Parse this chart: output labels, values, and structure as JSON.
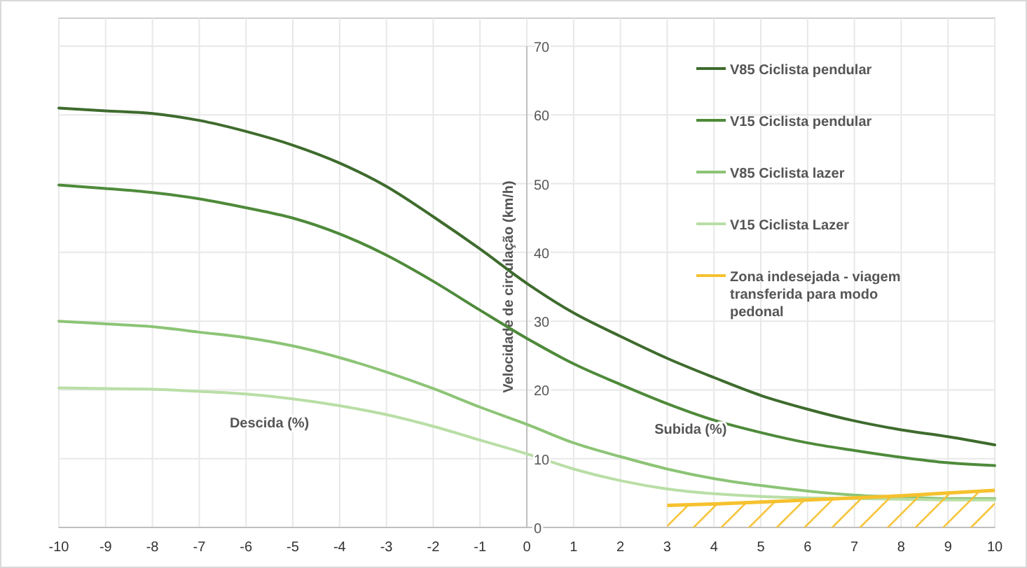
{
  "chart_data": {
    "type": "line",
    "ylabel": "Velocidade de circulação (km/h)",
    "annotations": [
      "Descida (%)",
      "Subida (%)"
    ],
    "x": [
      -10,
      -9,
      -8,
      -7,
      -6,
      -5,
      -4,
      -3,
      -2,
      -1,
      0,
      1,
      2,
      3,
      4,
      5,
      6,
      7,
      8,
      9,
      10
    ],
    "xlim": [
      -10,
      10
    ],
    "xticks": [
      -10,
      -9,
      -8,
      -7,
      -6,
      -5,
      -4,
      -3,
      -2,
      -1,
      0,
      1,
      2,
      3,
      4,
      5,
      6,
      7,
      8,
      9,
      10
    ],
    "ylim": [
      0,
      70
    ],
    "yticks": [
      0,
      10,
      20,
      30,
      40,
      50,
      60,
      70
    ],
    "grid": true,
    "legend": "top right",
    "marker": "none",
    "line_style": "solid",
    "series": [
      {
        "name": "V85 Ciclista pendular",
        "color": "#3e6b2d",
        "values": [
          61,
          60.6,
          60.2,
          59.2,
          57.6,
          55.6,
          53,
          49.6,
          45.2,
          40.5,
          35.5,
          31.2,
          27.8,
          24.6,
          21.8,
          19.2,
          17.2,
          15.5,
          14.2,
          13.2,
          12
        ]
      },
      {
        "name": "V15 Ciclista pendular",
        "color": "#4e8a3a",
        "values": [
          49.8,
          49.3,
          48.7,
          47.8,
          46.5,
          45,
          42.7,
          39.6,
          35.8,
          31.6,
          27.5,
          23.8,
          20.8,
          18,
          15.6,
          13.8,
          12.3,
          11.2,
          10.2,
          9.4,
          9
        ]
      },
      {
        "name": "V85 Ciclista lazer",
        "color": "#8cc476",
        "values": [
          30,
          29.6,
          29.2,
          28.4,
          27.6,
          26.4,
          24.7,
          22.6,
          20.2,
          17.5,
          15,
          12.3,
          10.3,
          8.5,
          7.1,
          6.1,
          5.3,
          4.7,
          4.4,
          4.2,
          4.2
        ]
      },
      {
        "name": "V15 Ciclista Lazer",
        "color": "#b9dea6",
        "values": [
          20.3,
          20.2,
          20.1,
          19.8,
          19.4,
          18.7,
          17.7,
          16.4,
          14.7,
          12.7,
          10.7,
          8.5,
          6.8,
          5.6,
          4.9,
          4.5,
          4.3,
          4.2,
          4.1,
          4,
          4
        ]
      },
      {
        "name": "Zona indesejada - viagem transferida para modo pedonal",
        "type": "area",
        "color": "#f5c12e",
        "x": [
          3,
          4,
          5,
          6,
          7,
          8,
          9,
          10
        ],
        "values": [
          3.2,
          3.4,
          3.7,
          4,
          4.3,
          4.6,
          5,
          5.4
        ]
      }
    ]
  }
}
